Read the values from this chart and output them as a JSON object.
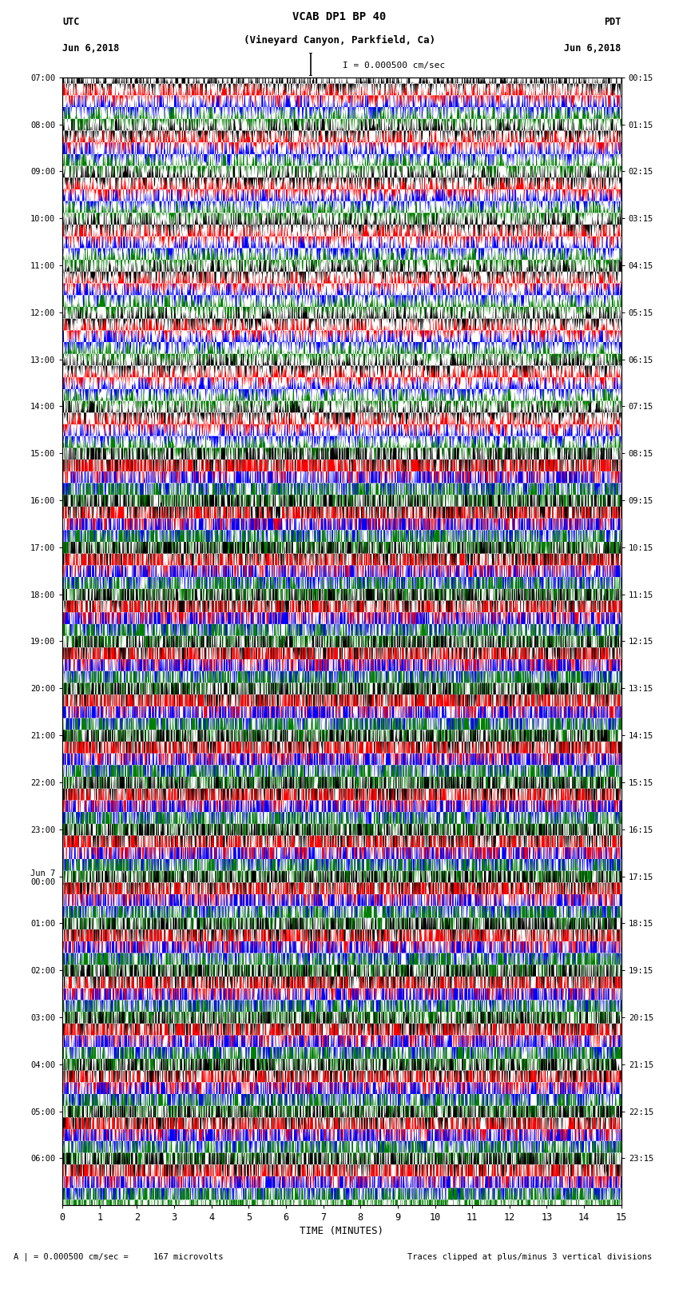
{
  "title_line1": "VCAB DP1 BP 40",
  "title_line2": "(Vineyard Canyon, Parkfield, Ca)",
  "scale_text": "I = 0.000500 cm/sec",
  "left_label": "UTC",
  "left_date": "Jun 6,2018",
  "right_label": "PDT",
  "right_date": "Jun 6,2018",
  "bottom_label": "TIME (MINUTES)",
  "bottom_note": "A | = 0.000500 cm/sec =     167 microvolts",
  "bottom_note2": "Traces clipped at plus/minus 3 vertical divisions",
  "left_times": [
    "07:00",
    "08:00",
    "09:00",
    "10:00",
    "11:00",
    "12:00",
    "13:00",
    "14:00",
    "15:00",
    "16:00",
    "17:00",
    "18:00",
    "19:00",
    "20:00",
    "21:00",
    "22:00",
    "23:00",
    "Jun 7\n00:00",
    "01:00",
    "02:00",
    "03:00",
    "04:00",
    "05:00",
    "06:00"
  ],
  "right_times": [
    "00:15",
    "01:15",
    "02:15",
    "03:15",
    "04:15",
    "05:15",
    "06:15",
    "07:15",
    "08:15",
    "09:15",
    "10:15",
    "11:15",
    "12:15",
    "13:15",
    "14:15",
    "15:15",
    "16:15",
    "17:15",
    "18:15",
    "19:15",
    "20:15",
    "21:15",
    "22:15",
    "23:15"
  ],
  "n_traces": 24,
  "colors": [
    "black",
    "red",
    "blue",
    "green"
  ],
  "bg_color": "white",
  "fig_width": 8.5,
  "fig_height": 16.13,
  "dpi": 100,
  "x_ticks": [
    0,
    1,
    2,
    3,
    4,
    5,
    6,
    7,
    8,
    9,
    10,
    11,
    12,
    13,
    14,
    15
  ],
  "x_tick_labels": [
    "0",
    "1",
    "2",
    "3",
    "4",
    "5",
    "6",
    "7",
    "8",
    "9",
    "10",
    "11",
    "12",
    "13",
    "14",
    "15"
  ],
  "amplitude_schedule": [
    1.5,
    1.5,
    1.5,
    1.5,
    1.5,
    1.5,
    1.5,
    1.5,
    6.0,
    6.0,
    5.0,
    5.0,
    6.0,
    6.5,
    6.0,
    5.5,
    5.5,
    5.0,
    5.0,
    5.0,
    4.5,
    4.5,
    4.5,
    5.0
  ]
}
